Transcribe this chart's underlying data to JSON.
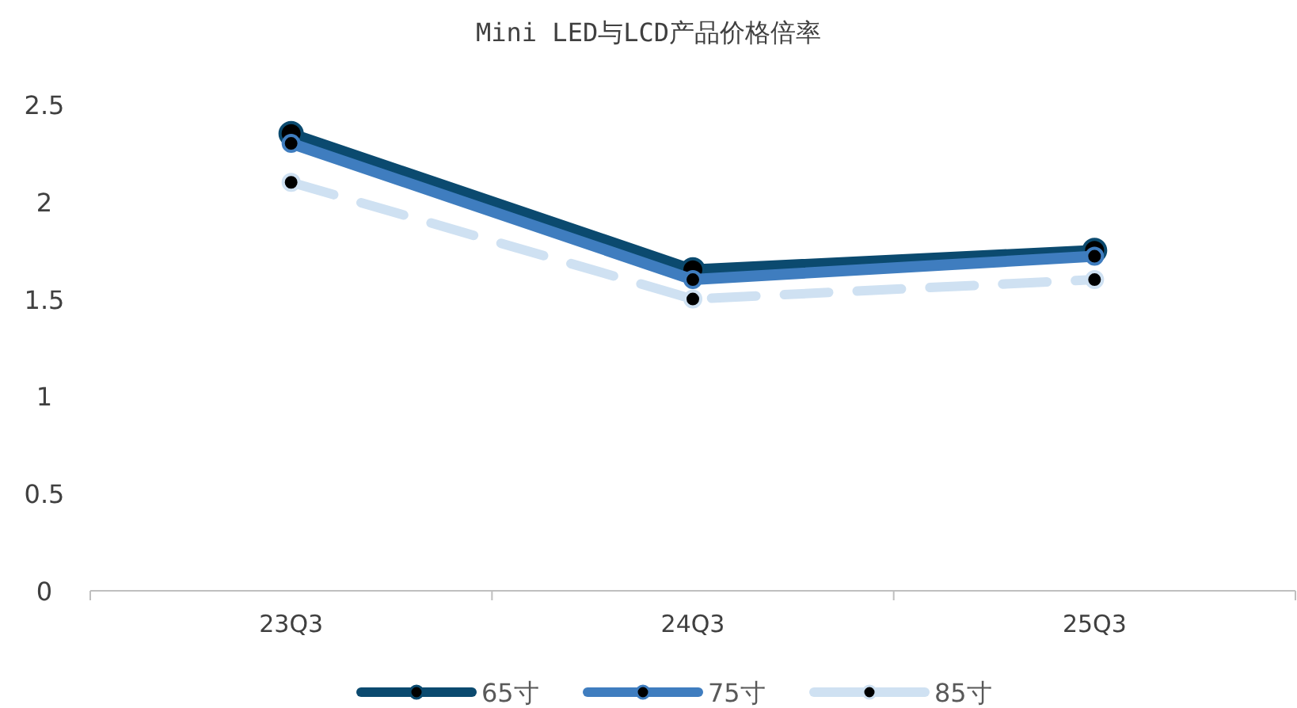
{
  "chart_data": {
    "type": "line",
    "title": "Mini LED与LCD产品价格倍率",
    "categories": [
      "23Q3",
      "24Q3",
      "25Q3"
    ],
    "series": [
      {
        "name": "65寸",
        "color": "#0b4a6f",
        "values": [
          2.35,
          1.65,
          1.75
        ],
        "line_style": "solid"
      },
      {
        "name": "75寸",
        "color": "#3f7dbf",
        "values": [
          2.3,
          1.6,
          1.72
        ],
        "line_style": "solid"
      },
      {
        "name": "85寸",
        "color": "#cfe1f2",
        "values": [
          2.1,
          1.5,
          1.6
        ],
        "line_style": "dashed"
      }
    ],
    "ylim": [
      0,
      2.5
    ],
    "yticks": [
      0,
      0.5,
      1,
      1.5,
      2,
      2.5
    ],
    "grid": false,
    "legend": "bottom",
    "marker": "circle"
  }
}
